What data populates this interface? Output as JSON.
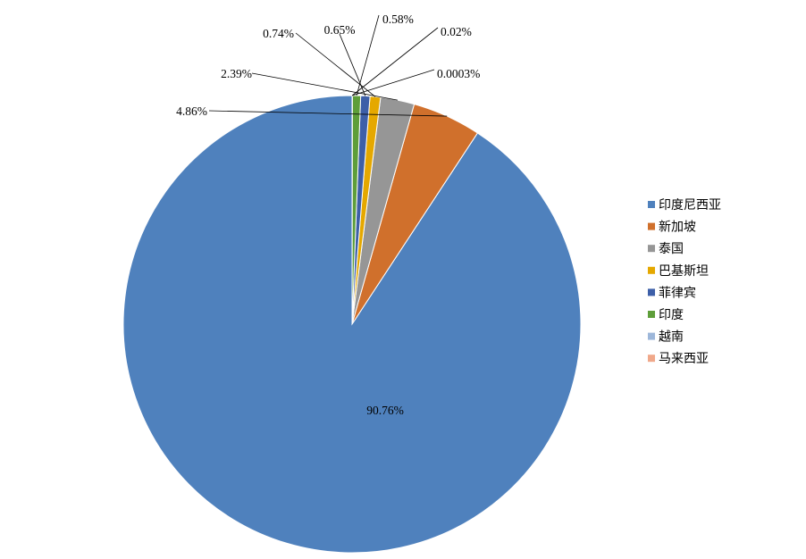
{
  "chart_data": {
    "type": "pie",
    "legend_position": "right",
    "slices": [
      {
        "name": "印度尼西亚",
        "value": 90.76,
        "label": "90.76%",
        "color": "#4F81BD"
      },
      {
        "name": "新加坡",
        "value": 4.86,
        "label": "4.86%",
        "color": "#D0702C"
      },
      {
        "name": "泰国",
        "value": 2.39,
        "label": "2.39%",
        "color": "#969696"
      },
      {
        "name": "巴基斯坦",
        "value": 0.74,
        "label": "0.74%",
        "color": "#E5A800"
      },
      {
        "name": "菲律宾",
        "value": 0.65,
        "label": "0.65%",
        "color": "#3D5FA8"
      },
      {
        "name": "印度",
        "value": 0.58,
        "label": "0.58%",
        "color": "#5E9E3A"
      },
      {
        "name": "越南",
        "value": 0.02,
        "label": "0.02%",
        "color": "#9DB7DA"
      },
      {
        "name": "马来西亚",
        "value": 0.0003,
        "label": "0.0003%",
        "color": "#F0A88A"
      }
    ]
  }
}
